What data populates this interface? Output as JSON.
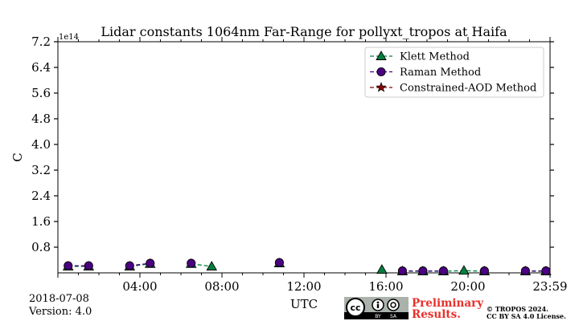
{
  "chart_data": {
    "type": "scatter",
    "title": "Lidar constants 1064nm Far-Range for pollyxt_tropos at Haifa",
    "xlabel": "UTC",
    "ylabel": "C",
    "y_scale_label": "1e14",
    "xlim": [
      0,
      24
    ],
    "ylim": [
      0,
      7.2
    ],
    "x_ticks": [
      {
        "value": 4,
        "label": "04:00"
      },
      {
        "value": 8,
        "label": "08:00"
      },
      {
        "value": 12,
        "label": "12:00"
      },
      {
        "value": 16,
        "label": "16:00"
      },
      {
        "value": 20,
        "label": "20:00"
      },
      {
        "value": 24,
        "label": "23:59"
      }
    ],
    "y_ticks": [
      {
        "value": 0.8,
        "label": "0.8"
      },
      {
        "value": 1.6,
        "label": "1.6"
      },
      {
        "value": 2.4,
        "label": "2.4"
      },
      {
        "value": 3.2,
        "label": "3.2"
      },
      {
        "value": 4.0,
        "label": "4.0"
      },
      {
        "value": 4.8,
        "label": "4.8"
      },
      {
        "value": 5.6,
        "label": "5.6"
      },
      {
        "value": 6.4,
        "label": "6.4"
      },
      {
        "value": 7.2,
        "label": "7.2"
      }
    ],
    "legend_position": "top-right",
    "series": [
      {
        "name": "Klett Method",
        "marker": "triangle",
        "color": "#008040",
        "segments": [
          [
            [
              0.5,
              0.2
            ],
            [
              1.5,
              0.2
            ]
          ],
          [
            [
              3.5,
              0.2
            ],
            [
              4.5,
              0.28
            ]
          ],
          [
            [
              6.5,
              0.28
            ],
            [
              7.5,
              0.2
            ]
          ],
          [
            [
              10.8,
              0.3
            ]
          ],
          [
            [
              15.8,
              0.1
            ]
          ],
          [
            [
              16.8,
              0.05
            ],
            [
              17.8,
              0.05
            ],
            [
              18.8,
              0.05
            ],
            [
              19.8,
              0.07
            ],
            [
              20.8,
              0.05
            ]
          ],
          [
            [
              22.8,
              0.05
            ],
            [
              23.8,
              0.05
            ]
          ]
        ]
      },
      {
        "name": "Raman Method",
        "marker": "circle",
        "color": "#4b0082",
        "segments": [
          [
            [
              0.5,
              0.22
            ],
            [
              1.5,
              0.22
            ]
          ],
          [
            [
              3.5,
              0.22
            ],
            [
              4.5,
              0.3
            ]
          ],
          [
            [
              6.5,
              0.3
            ]
          ],
          [
            [
              10.8,
              0.32
            ]
          ],
          [
            [
              16.8,
              0.06
            ],
            [
              17.8,
              0.06
            ],
            [
              18.8,
              0.06
            ]
          ],
          [
            [
              20.8,
              0.06
            ]
          ],
          [
            [
              22.8,
              0.06
            ],
            [
              23.8,
              0.06
            ]
          ]
        ]
      },
      {
        "name": "Constrained-AOD Method",
        "marker": "star",
        "color": "#8b0000",
        "segments": []
      }
    ]
  },
  "footer": {
    "date": "2018-07-08",
    "version": "Version: 4.0",
    "prelim_line1": "Preliminary",
    "prelim_line2": "Results.",
    "copyright_line1": "© TROPOS 2024.",
    "copyright_line2": "CC BY SA 4.0 License.",
    "cc_text": "cc",
    "by_text": "BY",
    "sa_text": "SA"
  },
  "colors": {
    "prelim": "#e8302c",
    "badge_bg": "#aab2ab",
    "badge_dark": "#000000"
  }
}
